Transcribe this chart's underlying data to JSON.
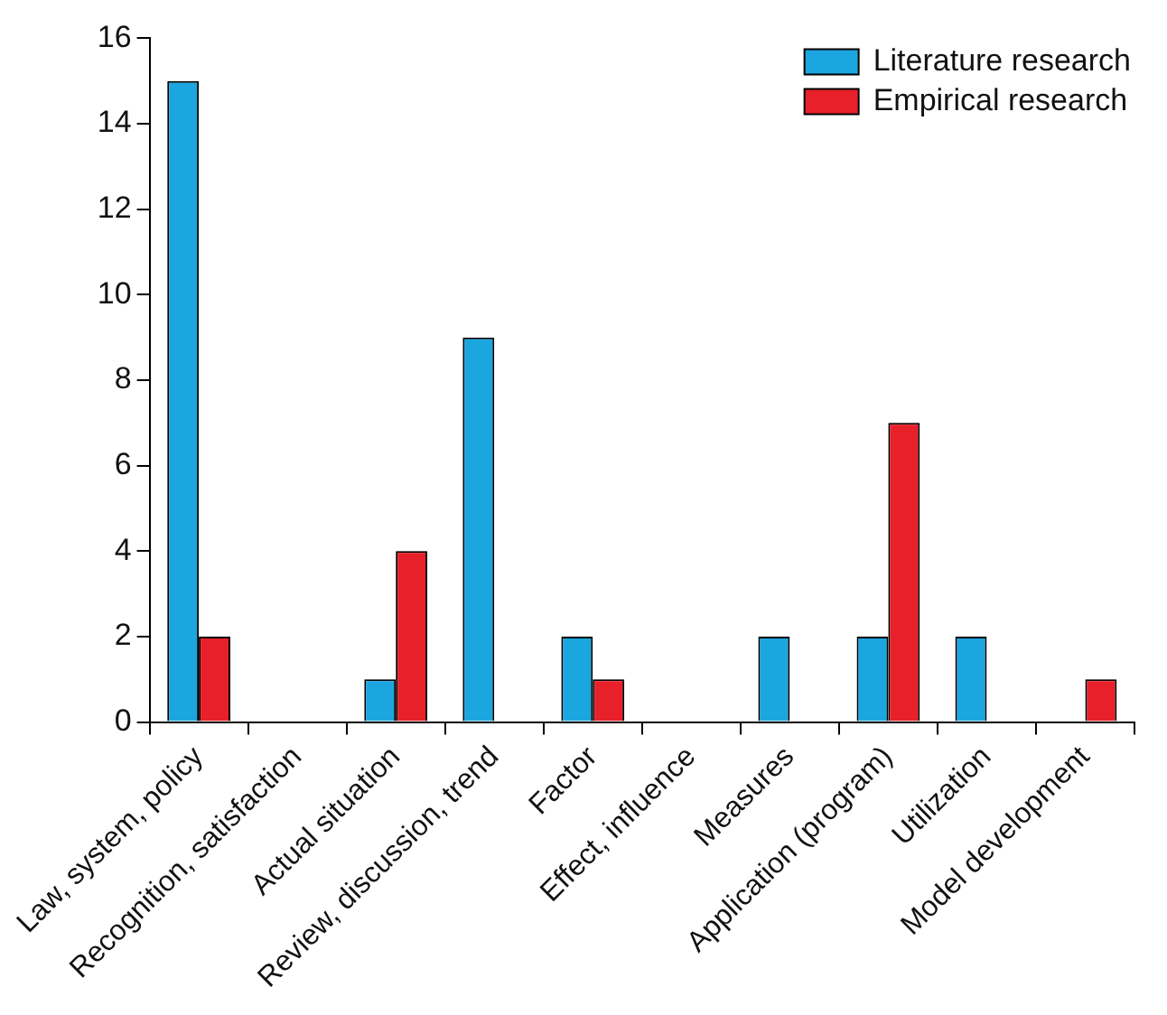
{
  "chart_data": {
    "type": "bar",
    "categories": [
      "Law, system, policy",
      "Recognition, satisfaction",
      "Actual situation",
      "Review, discussion, trend",
      "Factor",
      "Effect, influence",
      "Measures",
      "Application (program)",
      "Utilization",
      "Model development"
    ],
    "series": [
      {
        "name": "Literature research",
        "color": "#1ba6e0",
        "values": [
          15,
          0,
          1,
          9,
          2,
          0,
          2,
          2,
          2,
          0
        ]
      },
      {
        "name": "Empirical research",
        "color": "#e8202a",
        "values": [
          2,
          0,
          4,
          0,
          1,
          0,
          0,
          7,
          0,
          1
        ]
      }
    ],
    "ylim": [
      0,
      16
    ],
    "yticks": [
      0,
      2,
      4,
      6,
      8,
      10,
      12,
      14,
      16
    ],
    "legend": "top right"
  }
}
